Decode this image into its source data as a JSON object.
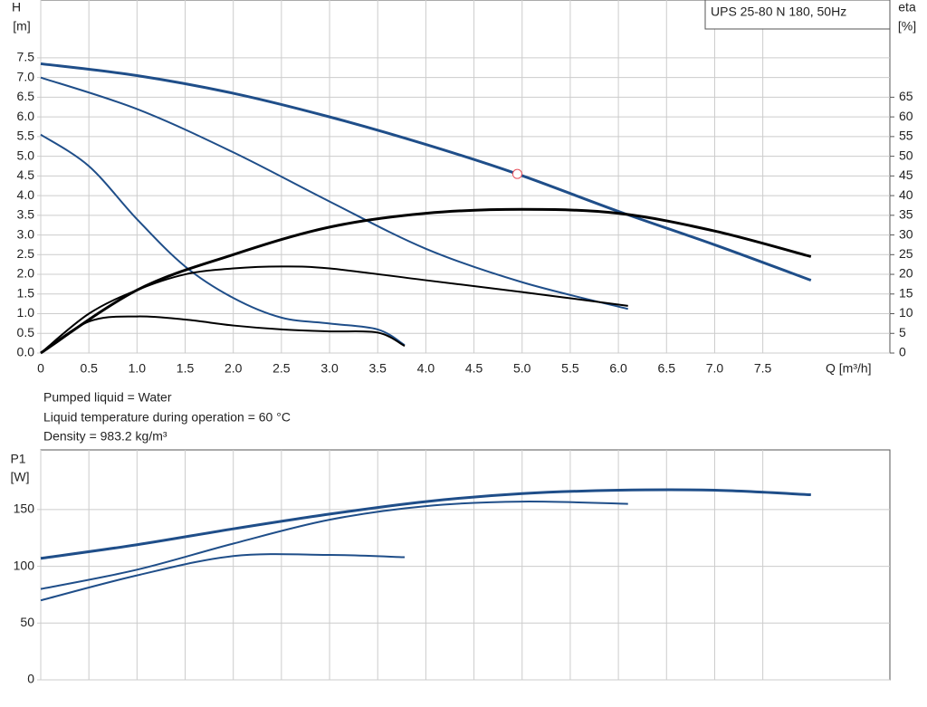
{
  "chart_data": [
    {
      "type": "line",
      "title": "UPS 25-80 N 180, 50Hz",
      "y_label": "H",
      "y_unit": "[m]",
      "y2_label": "eta",
      "y2_unit": "[%]",
      "x_label": "Q [m³/h]",
      "xlim": [
        0,
        8.82
      ],
      "ylim": [
        0,
        8.97
      ],
      "y2lim": [
        0,
        89.7
      ],
      "grid": true,
      "xticks": [
        0,
        0.5,
        {
          "value": 1,
          "label": "1.0"
        },
        1.5,
        {
          "value": 2,
          "label": "2.0"
        },
        2.5,
        {
          "value": 3,
          "label": "3.0"
        },
        3.5,
        {
          "value": 4,
          "label": "4.0"
        },
        4.5,
        {
          "value": 5,
          "label": "5.0"
        },
        5.5,
        {
          "value": 6,
          "label": "6.0"
        },
        6.5,
        {
          "value": 7,
          "label": "7.0"
        },
        7.5
      ],
      "yticks": [
        {
          "value": 0,
          "label": "0.0"
        },
        0.5,
        {
          "value": 1,
          "label": "1.0"
        },
        1.5,
        {
          "value": 2,
          "label": "2.0"
        },
        2.5,
        {
          "value": 3,
          "label": "3.0"
        },
        3.5,
        {
          "value": 4,
          "label": "4.0"
        },
        4.5,
        {
          "value": 5,
          "label": "5.0"
        },
        5.5,
        {
          "value": 6,
          "label": "6.0"
        },
        6.5,
        {
          "value": 7,
          "label": "7.0"
        },
        7.5
      ],
      "y2ticks": [
        0,
        5,
        10,
        15,
        20,
        25,
        30,
        35,
        40,
        45,
        50,
        55,
        60,
        65
      ],
      "series": [
        {
          "color": "#1f4e89",
          "width": 3,
          "x": [
            0,
            1,
            2,
            3,
            4,
            4.95,
            6,
            7,
            8
          ],
          "values": [
            7.35,
            7.05,
            6.6,
            6.0,
            5.3,
            4.55,
            3.6,
            2.75,
            1.85
          ]
        },
        {
          "color": "#1f4e89",
          "width": 2,
          "x": [
            0,
            1,
            2,
            3,
            4,
            5,
            6.1
          ],
          "values": [
            7.0,
            6.2,
            5.1,
            3.85,
            2.65,
            1.8,
            1.12
          ]
        },
        {
          "color": "#1f4e89",
          "width": 2,
          "x": [
            0,
            0.5,
            1,
            1.5,
            2,
            2.5,
            3,
            3.5,
            3.78
          ],
          "values": [
            5.55,
            4.75,
            3.4,
            2.2,
            1.4,
            0.9,
            0.75,
            0.6,
            0.2
          ]
        },
        {
          "color": "#000000",
          "width": 3,
          "axis": "y2",
          "x": [
            0,
            1,
            2,
            3,
            4,
            5,
            6,
            7,
            8
          ],
          "values": [
            0,
            16,
            25,
            32,
            35.5,
            36.5,
            35.5,
            31,
            24.5
          ]
        },
        {
          "color": "#000000",
          "width": 2,
          "axis": "y2",
          "x": [
            0,
            0.5,
            1,
            1.5,
            2,
            2.5,
            3,
            4,
            5,
            6.1
          ],
          "values": [
            0,
            10,
            16,
            20,
            21.5,
            22,
            21.5,
            18.5,
            15.5,
            12
          ]
        },
        {
          "color": "#000000",
          "width": 2,
          "axis": "y2",
          "x": [
            0,
            0.5,
            1,
            1.5,
            2,
            2.5,
            3,
            3.5,
            3.78
          ],
          "values": [
            0,
            8,
            9.3,
            8.5,
            7,
            6,
            5.5,
            5.2,
            1.8
          ]
        }
      ],
      "point": {
        "x": 4.95,
        "y": 4.55,
        "color": "#e8505b"
      },
      "notes": [
        "Pumped liquid = Water",
        "Liquid temperature during operation = 60 °C",
        "Density = 983.2 kg/m³"
      ]
    },
    {
      "type": "line",
      "y_label": "P1",
      "y_unit": "[W]",
      "xlim": [
        0,
        8.82
      ],
      "ylim": [
        0,
        202.5
      ],
      "grid": true,
      "yticks": [
        0,
        50,
        100,
        150
      ],
      "series": [
        {
          "color": "#1f4e89",
          "width": 3,
          "x": [
            0,
            1,
            2,
            3,
            4,
            5,
            6,
            7,
            8
          ],
          "values": [
            107,
            119,
            133,
            146,
            157,
            164,
            167,
            167,
            163
          ]
        },
        {
          "color": "#1f4e89",
          "width": 2,
          "x": [
            0,
            1,
            2,
            3,
            4,
            5,
            6.1
          ],
          "values": [
            80,
            97,
            120,
            141,
            153,
            157,
            155
          ]
        },
        {
          "color": "#1f4e89",
          "width": 2,
          "x": [
            0,
            1,
            2,
            3,
            3.78
          ],
          "values": [
            70,
            92,
            109,
            110,
            108
          ]
        }
      ]
    }
  ]
}
